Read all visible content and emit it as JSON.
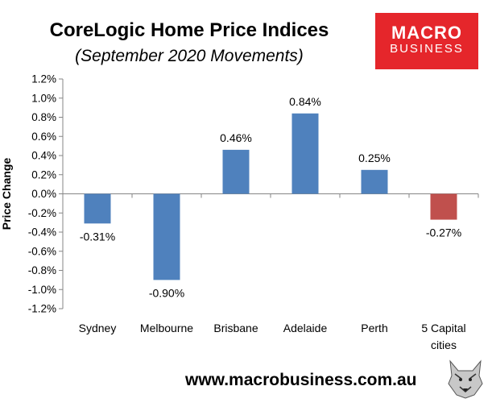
{
  "header": {
    "title": "CoreLogic Home Price Indices",
    "subtitle": "(September 2020 Movements)"
  },
  "logo": {
    "line1": "MACRO",
    "line2": "BUSINESS",
    "color": "#e5262b"
  },
  "footer": {
    "website": "www.macrobusiness.com.au"
  },
  "chart_data": {
    "type": "bar",
    "title": "CoreLogic Home Price Indices",
    "subtitle": "(September 2020 Movements)",
    "xlabel": "",
    "ylabel": "Price Change",
    "categories": [
      "Sydney",
      "Melbourne",
      "Brisbane",
      "Adelaide",
      "Perth",
      "5 Capital cities"
    ],
    "category_labels": [
      [
        "Sydney"
      ],
      [
        "Melbourne"
      ],
      [
        "Brisbane"
      ],
      [
        "Adelaide"
      ],
      [
        "Perth"
      ],
      [
        "5 Capital",
        "cities"
      ]
    ],
    "values": [
      -0.31,
      -0.9,
      0.46,
      0.84,
      0.25,
      -0.27
    ],
    "data_labels": [
      "-0.31%",
      "-0.90%",
      "0.46%",
      "0.84%",
      "0.25%",
      "-0.27%"
    ],
    "bar_colors": [
      "#4f81bd",
      "#4f81bd",
      "#4f81bd",
      "#4f81bd",
      "#4f81bd",
      "#c0504d"
    ],
    "ylim": [
      -1.2,
      1.2
    ],
    "yticks": [
      1.2,
      1.0,
      0.8,
      0.6,
      0.4,
      0.2,
      0.0,
      -0.2,
      -0.4,
      -0.6,
      -0.8,
      -1.0,
      -1.2
    ],
    "ytick_labels": [
      "1.2%",
      "1.0%",
      "0.8%",
      "0.6%",
      "0.4%",
      "0.2%",
      "0.0%",
      "-0.2%",
      "-0.4%",
      "-0.6%",
      "-0.8%",
      "-1.0%",
      "-1.2%"
    ],
    "grid": false,
    "legend": "none"
  }
}
